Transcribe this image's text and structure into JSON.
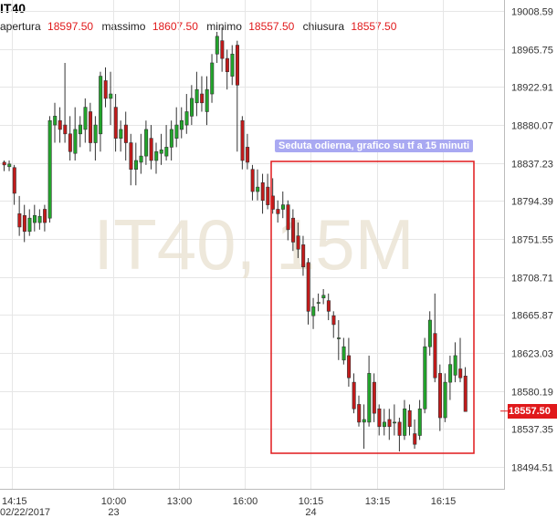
{
  "header": {
    "symbol": "IT40",
    "open_label": "apertura",
    "open": "18597.50",
    "high_label": "massimo",
    "high": "18607.50",
    "low_label": "minimo",
    "low": "18557.50",
    "close_label": "chiusura",
    "close": "18557.50"
  },
  "watermark": "IT40, 15M",
  "annotation": "Seduta odierna, grafico su tf a 15 minuti",
  "last_price_label": "18557.50",
  "colors": {
    "up": "#22a52b",
    "down": "#c21a1a",
    "annotation_box": "#e0191b",
    "label_bg": "#a9a9f2"
  },
  "chart_data": {
    "type": "candlestick",
    "y_ticks": [
      "19008.59",
      "18965.75",
      "18922.91",
      "18880.07",
      "18837.23",
      "18794.39",
      "18751.55",
      "18708.71",
      "18665.87",
      "18623.03",
      "18580.19",
      "18537.35",
      "18494.51"
    ],
    "ylim": [
      18477,
      19015
    ],
    "x_ticks": [
      {
        "label": "14:15",
        "sub": "02/22/2017"
      },
      {
        "label": "10:00",
        "sub": "23"
      },
      {
        "label": "13:00",
        "sub": ""
      },
      {
        "label": "16:00",
        "sub": ""
      },
      {
        "label": "10:15",
        "sub": "24"
      },
      {
        "label": "13:15",
        "sub": ""
      },
      {
        "label": "16:15",
        "sub": ""
      }
    ],
    "last_price": 18557.5,
    "candles": [
      [
        18838,
        18835,
        18840,
        18828
      ],
      [
        18833,
        18836,
        18840,
        18828
      ],
      [
        18832,
        18803,
        18835,
        18790
      ],
      [
        18780,
        18765,
        18800,
        18755
      ],
      [
        18778,
        18760,
        18790,
        18748
      ],
      [
        18760,
        18775,
        18785,
        18755
      ],
      [
        18770,
        18778,
        18790,
        18760
      ],
      [
        18770,
        18777,
        18785,
        18762
      ],
      [
        18785,
        18770,
        18790,
        18760
      ],
      [
        18775,
        18885,
        18890,
        18770
      ],
      [
        18880,
        18890,
        18905,
        18860
      ],
      [
        18885,
        18875,
        18900,
        18860
      ],
      [
        18880,
        18870,
        18950,
        18860
      ],
      [
        18870,
        18850,
        18890,
        18840
      ],
      [
        18848,
        18875,
        18900,
        18840
      ],
      [
        18870,
        18880,
        18890,
        18855
      ],
      [
        18875,
        18900,
        18910,
        18860
      ],
      [
        18895,
        18860,
        18905,
        18850
      ],
      [
        18860,
        18880,
        18890,
        18840
      ],
      [
        18870,
        18935,
        18940,
        18850
      ],
      [
        18930,
        18910,
        18945,
        18900
      ],
      [
        18910,
        18915,
        18940,
        18880
      ],
      [
        18900,
        18865,
        18915,
        18850
      ],
      [
        18865,
        18875,
        18885,
        18850
      ],
      [
        18880,
        18860,
        18895,
        18840
      ],
      [
        18860,
        18830,
        18870,
        18812
      ],
      [
        18830,
        18840,
        18860,
        18812
      ],
      [
        18838,
        18845,
        18870,
        18825
      ],
      [
        18845,
        18875,
        18885,
        18835
      ],
      [
        18865,
        18840,
        18880,
        18830
      ],
      [
        18840,
        18850,
        18860,
        18825
      ],
      [
        18848,
        18852,
        18870,
        18835
      ],
      [
        18845,
        18855,
        18880,
        18840
      ],
      [
        18855,
        18875,
        18885,
        18840
      ],
      [
        18865,
        18880,
        18900,
        18855
      ],
      [
        18875,
        18885,
        18900,
        18865
      ],
      [
        18880,
        18895,
        18915,
        18870
      ],
      [
        18890,
        18910,
        18925,
        18880
      ],
      [
        18905,
        18920,
        18940,
        18890
      ],
      [
        18915,
        18905,
        18935,
        18895
      ],
      [
        18895,
        18920,
        18935,
        18880
      ],
      [
        18915,
        18950,
        18960,
        18905
      ],
      [
        18960,
        18980,
        18985,
        18950
      ],
      [
        18975,
        18955,
        18990,
        18940
      ],
      [
        18955,
        18940,
        18965,
        18920
      ],
      [
        18935,
        18960,
        18970,
        18925
      ],
      [
        18970,
        18925,
        18975,
        18850
      ],
      [
        18885,
        18840,
        18890,
        18830
      ],
      [
        18855,
        18838,
        18870,
        18830
      ],
      [
        18830,
        18805,
        18835,
        18795
      ],
      [
        18805,
        18810,
        18830,
        18795
      ],
      [
        18815,
        18795,
        18825,
        18780
      ],
      [
        18810,
        18790,
        18825,
        18785
      ],
      [
        18800,
        18785,
        18820,
        18780
      ],
      [
        18785,
        18780,
        18795,
        18770
      ],
      [
        18785,
        18790,
        18805,
        18775
      ],
      [
        18790,
        18762,
        18795,
        18750
      ],
      [
        18775,
        18748,
        18785,
        18738
      ],
      [
        18755,
        18740,
        18770,
        18730
      ],
      [
        18745,
        18720,
        18755,
        18710
      ],
      [
        18725,
        18670,
        18730,
        18655
      ],
      [
        18665,
        18675,
        18685,
        18650
      ],
      [
        18680,
        18680,
        18690,
        18670
      ],
      [
        18685,
        18688,
        18695,
        18678
      ],
      [
        18682,
        18670,
        18690,
        18660
      ],
      [
        18665,
        18655,
        18670,
        18640
      ],
      [
        18640,
        18640,
        18660,
        18615
      ],
      [
        18615,
        18630,
        18640,
        18610
      ],
      [
        18620,
        18595,
        18640,
        18585
      ],
      [
        18590,
        18560,
        18600,
        18555
      ],
      [
        18565,
        18545,
        18575,
        18540
      ],
      [
        18545,
        18548,
        18565,
        18515
      ],
      [
        18545,
        18600,
        18620,
        18540
      ],
      [
        18590,
        18555,
        18600,
        18545
      ],
      [
        18560,
        18540,
        18565,
        18530
      ],
      [
        18540,
        18545,
        18560,
        18530
      ],
      [
        18548,
        18540,
        18560,
        18525
      ],
      [
        18545,
        18545,
        18565,
        18530
      ],
      [
        18545,
        18530,
        18550,
        18512
      ],
      [
        18530,
        18560,
        18570,
        18525
      ],
      [
        18558,
        18540,
        18565,
        18530
      ],
      [
        18532,
        18520,
        18548,
        18515
      ],
      [
        18530,
        18560,
        18570,
        18525
      ],
      [
        18560,
        18630,
        18640,
        18555
      ],
      [
        18630,
        18660,
        18670,
        18620
      ],
      [
        18645,
        18595,
        18690,
        18590
      ],
      [
        18600,
        18550,
        18610,
        18535
      ],
      [
        18550,
        18590,
        18600,
        18545
      ],
      [
        18590,
        18610,
        18620,
        18570
      ],
      [
        18598,
        18620,
        18635,
        18590
      ],
      [
        18605,
        18595,
        18640,
        18590
      ],
      [
        18597,
        18557,
        18607,
        18557
      ]
    ]
  }
}
